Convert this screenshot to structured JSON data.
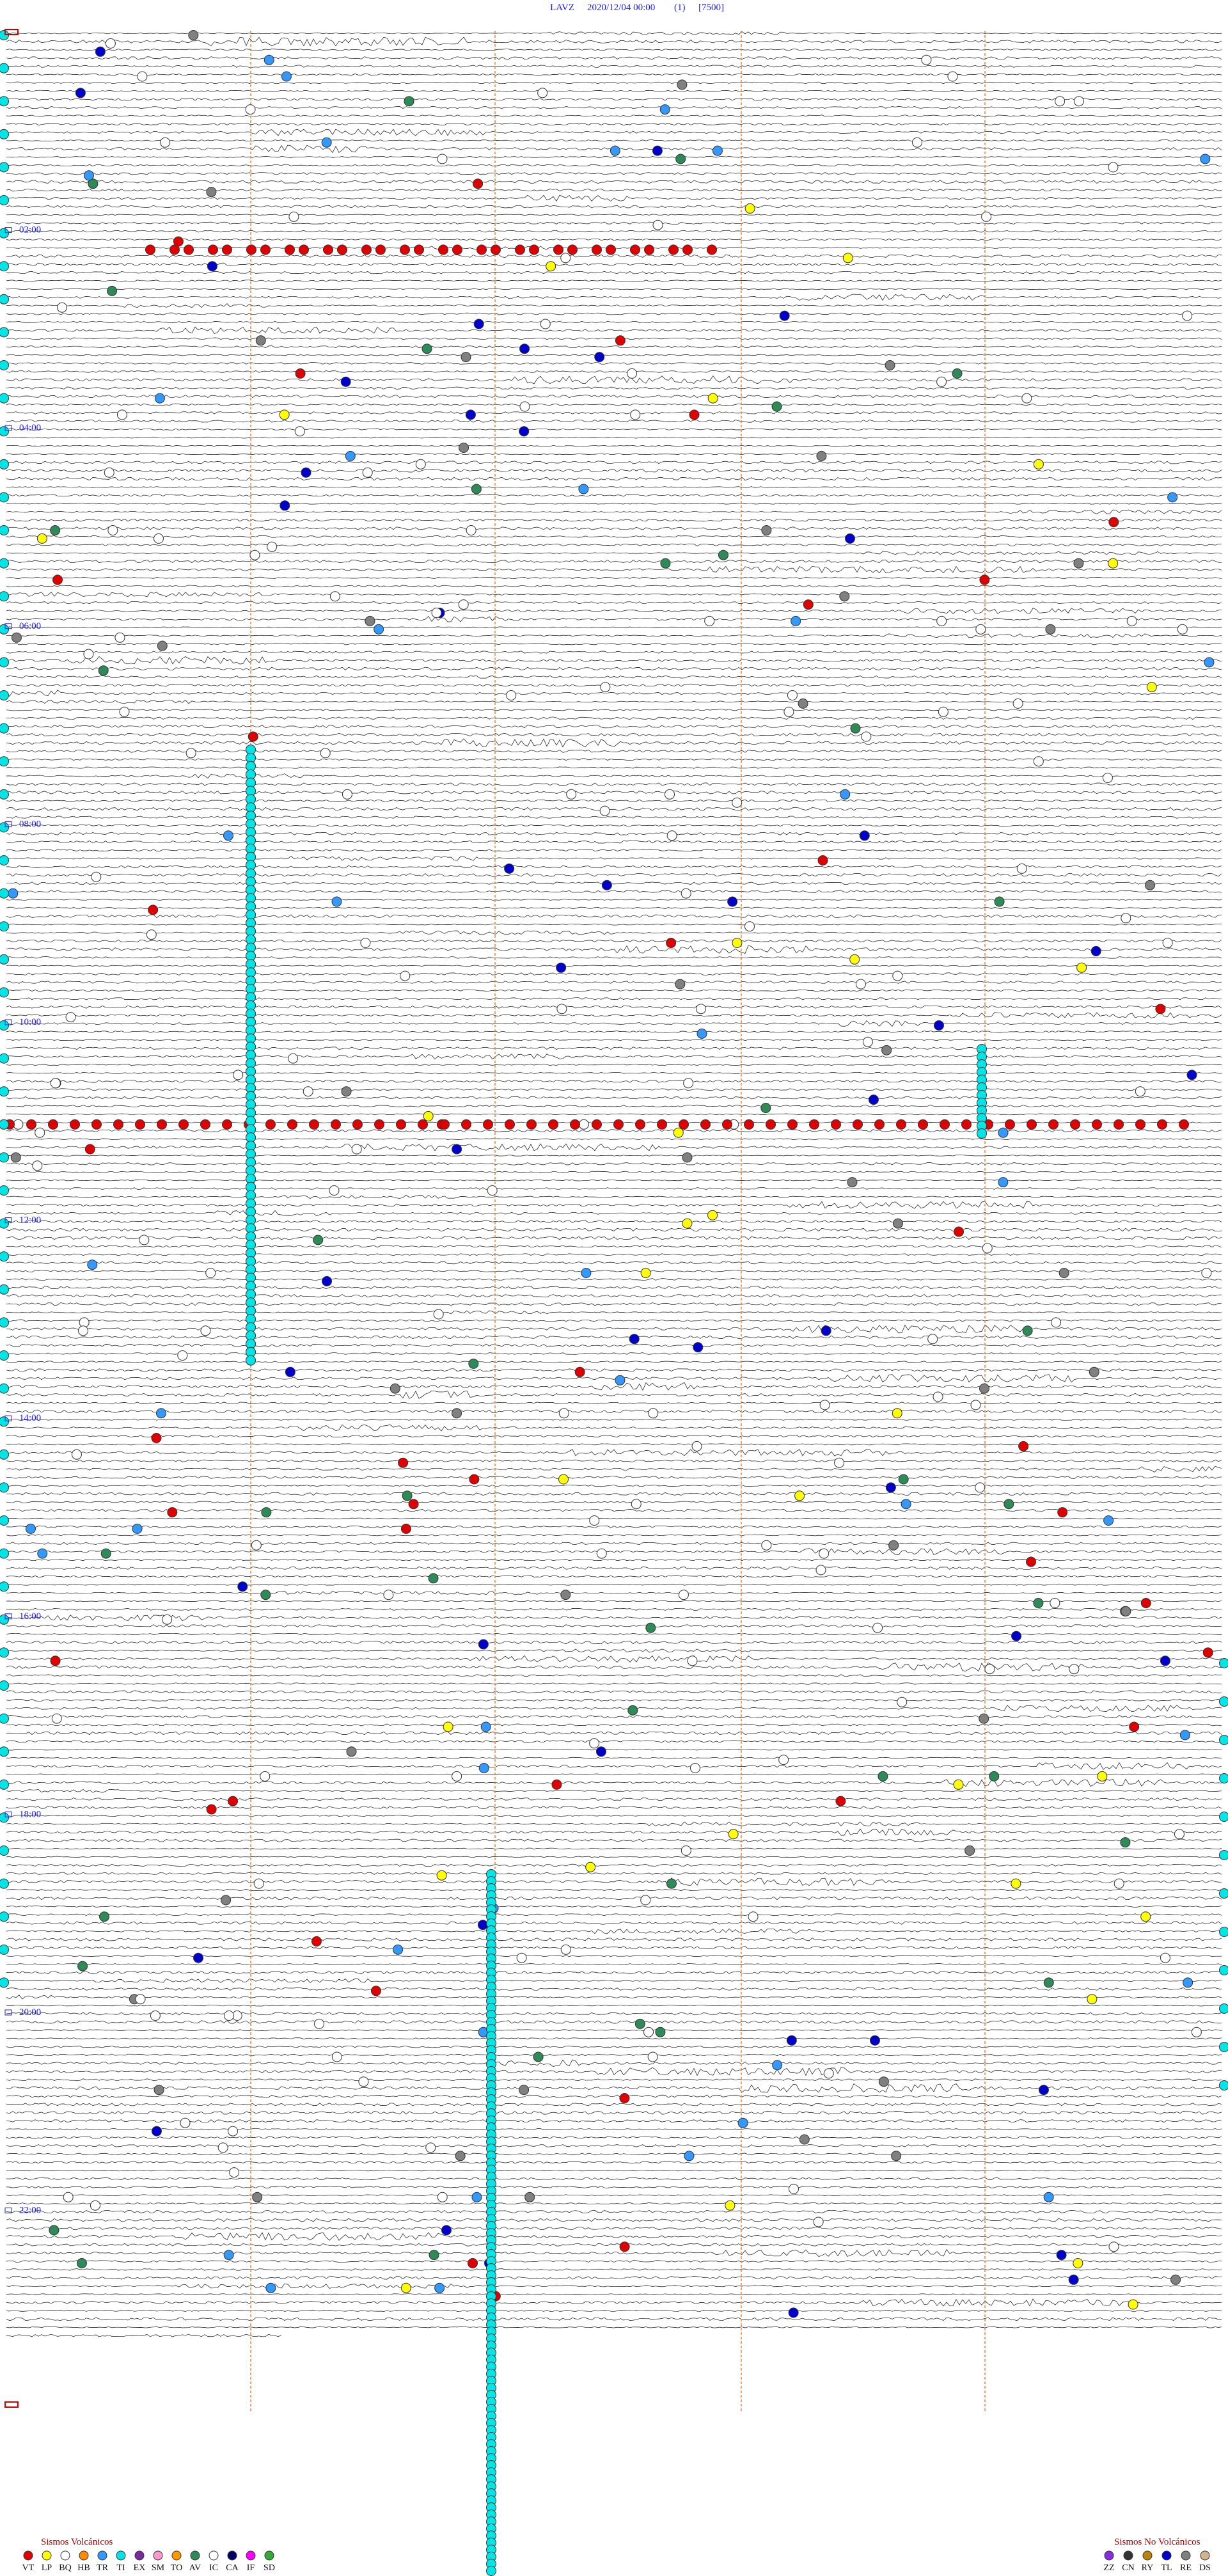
{
  "header": {
    "station": "LAVZ",
    "datetime": "2020/12/04 00:00",
    "channel": "(1)",
    "scale": "[7500]"
  },
  "time_labels": [
    "02:00",
    "04:00",
    "06:00",
    "08:00",
    "10:00",
    "12:00",
    "14:00",
    "16:00",
    "18:00",
    "20:00",
    "22:00"
  ],
  "legend": {
    "volcanic": {
      "title": "Sismos Volcánicos",
      "items": [
        {
          "code": "VT",
          "color": "#e00000"
        },
        {
          "code": "LP",
          "color": "#ffff00"
        },
        {
          "code": "BQ",
          "color": "#ffffff"
        },
        {
          "code": "HB",
          "color": "#ff8c00"
        },
        {
          "code": "TR",
          "color": "#3399ff"
        },
        {
          "code": "TI",
          "color": "#00e5e5"
        },
        {
          "code": "EX",
          "color": "#7a2a9a"
        },
        {
          "code": "SM",
          "color": "#ff99cc"
        },
        {
          "code": "TO",
          "color": "#ff9900"
        },
        {
          "code": "AV",
          "color": "#2e8b57"
        },
        {
          "code": "IC",
          "color": "#ffffff"
        },
        {
          "code": "CA",
          "color": "#000066"
        },
        {
          "code": "IF",
          "color": "#ff00ff"
        },
        {
          "code": "SD",
          "color": "#33aa33"
        }
      ]
    },
    "non_volcanic": {
      "title": "Sismos No Volcánicos",
      "items": [
        {
          "code": "ZZ",
          "color": "#8a2be2"
        },
        {
          "code": "CN",
          "color": "#333333"
        },
        {
          "code": "RY",
          "color": "#b8860b"
        },
        {
          "code": "TL",
          "color": "#0000cc"
        },
        {
          "code": "RE",
          "color": "#808080"
        },
        {
          "code": "DS",
          "color": "#d2b48c"
        }
      ]
    }
  }
}
